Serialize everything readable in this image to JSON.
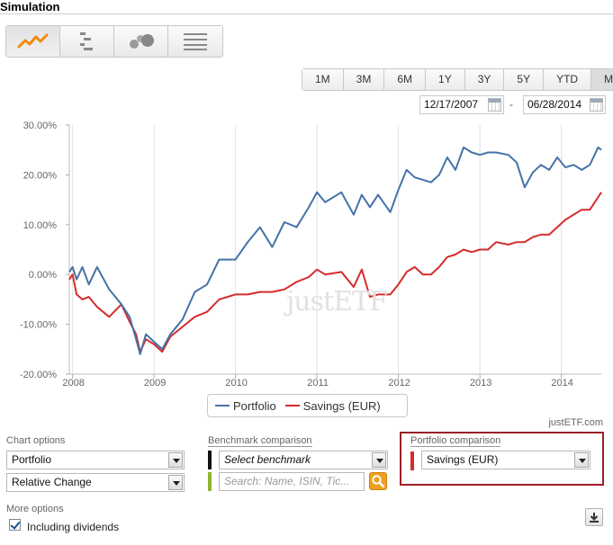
{
  "header": {
    "title": "Simulation"
  },
  "view_modes": [
    {
      "icon": "line-chart-icon",
      "active": true
    },
    {
      "icon": "bar-list-icon",
      "active": false
    },
    {
      "icon": "bubble-chart-icon",
      "active": false
    },
    {
      "icon": "table-list-icon",
      "active": false
    }
  ],
  "ranges": [
    "1M",
    "3M",
    "6M",
    "1Y",
    "3Y",
    "5Y",
    "YTD",
    "MAX"
  ],
  "active_range": "MAX",
  "dates": {
    "start": "12/17/2007",
    "end": "06/28/2014"
  },
  "legend": {
    "portfolio": "Portfolio",
    "savings": "Savings (EUR)"
  },
  "watermark": "justETF",
  "credit": "justETF.com",
  "colors": {
    "portfolio": "#4572a7",
    "savings": "#d62b2b",
    "benchmark_mark": "#111111",
    "search_mark": "#8db52e",
    "portfolio_mark": "#d62b2b",
    "highlight_box": "#9a1f24",
    "search_button": "#f0a020"
  },
  "chart_options": {
    "label": "Chart options",
    "series_select": "Portfolio",
    "mode_select": "Relative Change"
  },
  "benchmark": {
    "label": "Benchmark comparison",
    "select_placeholder": "Select benchmark",
    "search_placeholder": "Search: Name, ISIN, Tic..."
  },
  "portfolio_comparison": {
    "label": "Portfolio comparison",
    "select": "Savings (EUR)"
  },
  "more_options": {
    "label": "More options",
    "dividends_label": "Including dividends",
    "dividends_checked": true
  },
  "chart_data": {
    "type": "line",
    "title": "",
    "xlabel": "",
    "ylabel": "",
    "x_ticks": [
      "2008",
      "2009",
      "2010",
      "2011",
      "2012",
      "2013",
      "2014"
    ],
    "y_ticks": [
      "30.00%",
      "20.00%",
      "10.00%",
      "0.00%",
      "-10.00%",
      "-20.00%"
    ],
    "ylim": [
      -20,
      30
    ],
    "xlim": [
      2007.96,
      2014.49
    ],
    "grid": "vertical",
    "legend_position": "bottom",
    "series": [
      {
        "name": "Portfolio",
        "x": [
          2007.96,
          2008.0,
          2008.05,
          2008.12,
          2008.2,
          2008.3,
          2008.45,
          2008.6,
          2008.7,
          2008.78,
          2008.83,
          2008.9,
          2009.0,
          2009.1,
          2009.2,
          2009.35,
          2009.5,
          2009.65,
          2009.8,
          2010.0,
          2010.15,
          2010.3,
          2010.45,
          2010.6,
          2010.75,
          2010.9,
          2011.0,
          2011.1,
          2011.3,
          2011.45,
          2011.55,
          2011.65,
          2011.75,
          2011.9,
          2012.0,
          2012.1,
          2012.2,
          2012.3,
          2012.4,
          2012.5,
          2012.6,
          2012.7,
          2012.8,
          2012.9,
          2013.0,
          2013.1,
          2013.2,
          2013.35,
          2013.45,
          2013.55,
          2013.65,
          2013.75,
          2013.85,
          2013.95,
          2014.05,
          2014.15,
          2014.25,
          2014.35,
          2014.45,
          2014.49
        ],
        "values": [
          0.5,
          1.5,
          -1.0,
          1.5,
          -2.0,
          1.5,
          -3.0,
          -6.0,
          -8.5,
          -13.0,
          -16.0,
          -12.0,
          -13.5,
          -15.0,
          -12.0,
          -9.0,
          -3.5,
          -2.0,
          3.0,
          3.0,
          6.5,
          9.5,
          5.5,
          10.5,
          9.5,
          13.5,
          16.5,
          14.5,
          16.5,
          12.0,
          16.0,
          13.5,
          16.0,
          12.5,
          17.0,
          21.0,
          19.5,
          19.0,
          18.5,
          20.0,
          23.5,
          21.0,
          25.5,
          24.5,
          24.0,
          24.5,
          24.5,
          24.0,
          22.5,
          17.5,
          20.5,
          22.0,
          21.0,
          23.5,
          21.5,
          22.0,
          21.0,
          22.0,
          25.5,
          25.0
        ]
      },
      {
        "name": "Savings (EUR)",
        "x": [
          2007.96,
          2008.0,
          2008.05,
          2008.12,
          2008.2,
          2008.3,
          2008.45,
          2008.6,
          2008.7,
          2008.78,
          2008.83,
          2008.9,
          2009.0,
          2009.1,
          2009.2,
          2009.35,
          2009.5,
          2009.65,
          2009.8,
          2010.0,
          2010.15,
          2010.3,
          2010.45,
          2010.6,
          2010.75,
          2010.9,
          2011.0,
          2011.1,
          2011.3,
          2011.45,
          2011.55,
          2011.65,
          2011.75,
          2011.9,
          2012.0,
          2012.1,
          2012.2,
          2012.3,
          2012.4,
          2012.5,
          2012.6,
          2012.7,
          2012.8,
          2012.9,
          2013.0,
          2013.1,
          2013.2,
          2013.35,
          2013.45,
          2013.55,
          2013.65,
          2013.75,
          2013.85,
          2013.95,
          2014.05,
          2014.15,
          2014.25,
          2014.35,
          2014.45,
          2014.49
        ],
        "values": [
          -1.0,
          0.0,
          -4.0,
          -5.0,
          -4.5,
          -6.5,
          -8.5,
          -6.0,
          -9.5,
          -12.0,
          -15.5,
          -13.0,
          -14.0,
          -15.5,
          -12.5,
          -10.5,
          -8.5,
          -7.5,
          -5.0,
          -4.0,
          -4.0,
          -3.5,
          -3.5,
          -3.0,
          -1.5,
          -0.5,
          1.0,
          0.0,
          0.5,
          -2.5,
          1.0,
          -4.5,
          -4.0,
          -4.0,
          -2.0,
          0.5,
          1.5,
          0.0,
          0.0,
          1.5,
          3.5,
          4.0,
          5.0,
          4.5,
          5.0,
          5.0,
          6.5,
          6.0,
          6.5,
          6.5,
          7.5,
          8.0,
          8.0,
          9.5,
          11.0,
          12.0,
          13.0,
          13.0,
          15.5,
          16.5
        ]
      }
    ]
  }
}
